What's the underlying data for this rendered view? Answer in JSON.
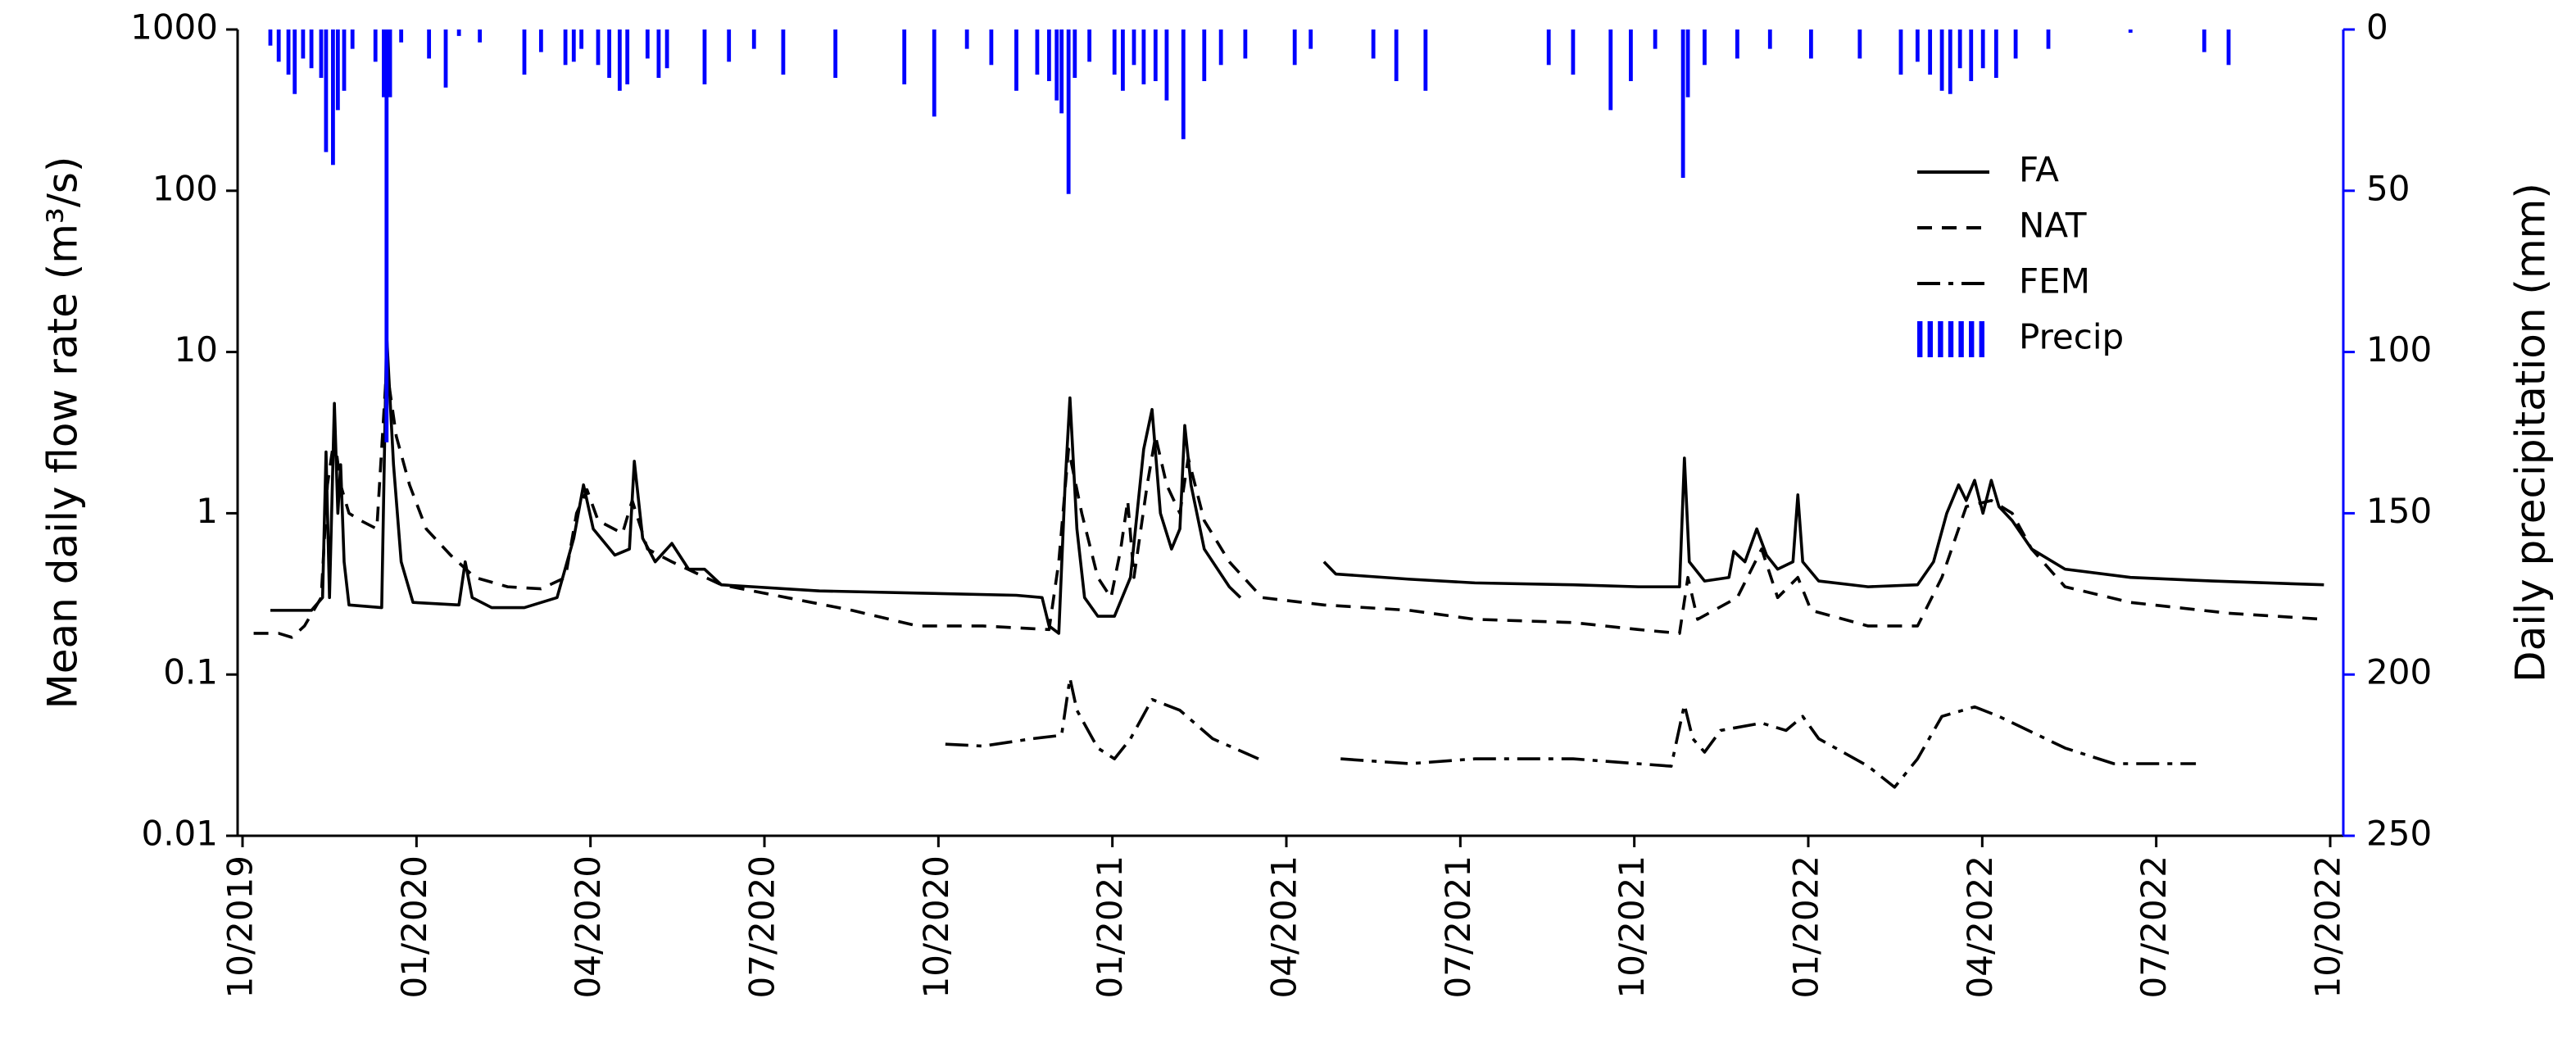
{
  "chart_data": {
    "type": "line",
    "y_label": "Mean daily flow rate (m³/s)",
    "y2_label": "Daily precipitation (mm)",
    "xlim": [
      2019.75,
      2022.75
    ],
    "xticks": [
      {
        "value": 2019.75,
        "label": "10/2019"
      },
      {
        "value": 2020.0,
        "label": "01/2020"
      },
      {
        "value": 2020.25,
        "label": "04/2020"
      },
      {
        "value": 2020.5,
        "label": "07/2020"
      },
      {
        "value": 2020.75,
        "label": "10/2020"
      },
      {
        "value": 2021.0,
        "label": "01/2021"
      },
      {
        "value": 2021.25,
        "label": "04/2021"
      },
      {
        "value": 2021.5,
        "label": "07/2021"
      },
      {
        "value": 2021.75,
        "label": "10/2021"
      },
      {
        "value": 2022.0,
        "label": "01/2022"
      },
      {
        "value": 2022.25,
        "label": "04/2022"
      },
      {
        "value": 2022.5,
        "label": "07/2022"
      },
      {
        "value": 2022.75,
        "label": "10/2022"
      }
    ],
    "ylim": [
      0.01,
      1000
    ],
    "ylog": true,
    "yticks": [
      0.01,
      0.1,
      1,
      10,
      100,
      1000
    ],
    "y2lim": [
      250,
      0
    ],
    "y2ticks": [
      0,
      50,
      100,
      150,
      200,
      250
    ],
    "y2color": "#0000ff",
    "legend": "upper right",
    "series": [
      {
        "name": "FA",
        "color": "#000000",
        "linestyle": "solid",
        "x": [
          2019.79,
          2019.849,
          2019.865,
          2019.87,
          2019.875,
          2019.882,
          2019.887,
          2019.891,
          2019.896,
          2019.903,
          2019.95,
          2019.957,
          2019.967,
          2019.978,
          2019.995,
          2020.061,
          2020.07,
          2020.08,
          2020.108,
          2020.155,
          2020.202,
          2020.226,
          2020.24,
          2020.254,
          2020.285,
          2020.306,
          2020.313,
          2020.325,
          2020.343,
          2020.367,
          2020.391,
          2020.414,
          2020.438,
          2020.579,
          2020.72,
          2020.862,
          2020.899,
          2020.909,
          2020.923,
          2020.932,
          2020.939,
          2020.949,
          2020.96,
          2020.979,
          2021.003,
          2021.026,
          2021.045,
          2021.057,
          2021.069,
          2021.085,
          2021.097,
          2021.104,
          2021.113,
          2021.132,
          2021.168,
          2021.184,
          2021.25,
          2021.304,
          2021.321,
          2021.427,
          2021.521,
          2021.662,
          2021.756,
          2021.815,
          2021.822,
          2021.829,
          2021.851,
          2021.886,
          2021.893,
          2021.909,
          2021.926,
          2021.94,
          2021.956,
          2021.978,
          2021.985,
          2021.992,
          2022.015,
          2022.086,
          2022.157,
          2022.18,
          2022.199,
          2022.216,
          2022.227,
          2022.239,
          2022.251,
          2022.263,
          2022.274,
          2022.293,
          2022.321,
          2022.369,
          2022.463,
          2022.581,
          2022.741
        ],
        "values": [
          0.25,
          0.25,
          0.3,
          2.4,
          0.3,
          4.8,
          1,
          2,
          0.5,
          0.27,
          0.26,
          13,
          2,
          0.5,
          0.28,
          0.27,
          0.5,
          0.3,
          0.26,
          0.26,
          0.3,
          0.7,
          1.5,
          0.8,
          0.55,
          0.6,
          2.1,
          0.7,
          0.5,
          0.65,
          0.45,
          0.45,
          0.36,
          0.33,
          0.32,
          0.31,
          0.3,
          0.2,
          0.18,
          1.5,
          5.2,
          0.8,
          0.3,
          0.23,
          0.23,
          0.4,
          2.5,
          4.4,
          1,
          0.6,
          0.8,
          3.5,
          1.5,
          0.6,
          0.35,
          0.3,
          null,
          0.5,
          0.42,
          0.39,
          0.37,
          0.36,
          0.35,
          0.35,
          2.2,
          0.5,
          0.38,
          0.4,
          0.58,
          0.5,
          0.8,
          0.55,
          0.45,
          0.5,
          1.3,
          0.5,
          0.38,
          0.35,
          0.36,
          0.5,
          1.0,
          1.5,
          1.2,
          1.6,
          1.0,
          1.6,
          1.1,
          0.9,
          0.6,
          0.45,
          0.4,
          0.38,
          0.36
        ]
      },
      {
        "name": "NAT",
        "color": "#000000",
        "linestyle": "dashed",
        "x": [
          2019.766,
          2019.802,
          2019.821,
          2019.839,
          2019.863,
          2019.872,
          2019.882,
          2019.891,
          2019.903,
          2019.92,
          2019.943,
          2019.957,
          2019.971,
          2019.99,
          2020.014,
          2020.049,
          2020.084,
          2020.131,
          2020.179,
          2020.214,
          2020.23,
          2020.245,
          2020.261,
          2020.296,
          2020.31,
          2020.332,
          2020.367,
          2020.438,
          2020.532,
          2020.626,
          2020.72,
          2020.814,
          2020.909,
          2020.923,
          2020.937,
          2020.956,
          2020.979,
          2020.998,
          2021.012,
          2021.022,
          2021.031,
          2021.05,
          2021.062,
          2021.078,
          2021.097,
          2021.109,
          2021.132,
          2021.168,
          2021.215,
          2021.304,
          2021.427,
          2021.521,
          2021.662,
          2021.756,
          2021.815,
          2021.827,
          2021.841,
          2021.898,
          2021.933,
          2021.956,
          2021.985,
          2022.004,
          2022.086,
          2022.157,
          2022.192,
          2022.227,
          2022.263,
          2022.293,
          2022.321,
          2022.369,
          2022.463,
          2022.604,
          2022.741
        ],
        "values": [
          0.18,
          0.18,
          0.17,
          0.2,
          0.3,
          1.5,
          3,
          1.5,
          1,
          0.9,
          0.8,
          8,
          3,
          1.5,
          0.8,
          0.55,
          0.4,
          0.35,
          0.34,
          0.4,
          1.0,
          1.4,
          0.9,
          0.75,
          1.2,
          0.6,
          0.5,
          0.36,
          0.3,
          0.25,
          0.2,
          0.2,
          0.19,
          0.5,
          2.5,
          1,
          0.4,
          0.3,
          0.6,
          1.2,
          0.4,
          1.5,
          3,
          1.5,
          1,
          2.2,
          0.9,
          0.5,
          0.3,
          0.27,
          0.25,
          0.22,
          0.21,
          0.19,
          0.18,
          0.4,
          0.22,
          0.3,
          0.6,
          0.3,
          0.4,
          0.25,
          0.2,
          0.2,
          0.4,
          1.1,
          1.2,
          1.0,
          0.6,
          0.35,
          0.28,
          0.24,
          0.22
        ]
      },
      {
        "name": "FEM",
        "color": "#000000",
        "linestyle": "dashdot",
        "x": [
          2020.76,
          2020.814,
          2020.885,
          2020.927,
          2020.939,
          2020.949,
          2020.979,
          2021.003,
          2021.026,
          2021.057,
          2021.097,
          2021.144,
          2021.21,
          2021.25,
          2021.328,
          2021.427,
          2021.521,
          2021.662,
          2021.803,
          2021.822,
          2021.834,
          2021.851,
          2021.874,
          2021.933,
          2021.968,
          2021.992,
          2022.015,
          2022.086,
          2022.124,
          2022.157,
          2022.192,
          2022.239,
          2022.274,
          2022.369,
          2022.439,
          2022.557
        ],
        "values": [
          0.037,
          0.036,
          0.04,
          0.042,
          0.095,
          0.06,
          0.035,
          0.03,
          0.04,
          0.07,
          0.06,
          0.04,
          0.03,
          null,
          0.03,
          0.028,
          0.03,
          0.03,
          0.027,
          0.065,
          0.04,
          0.033,
          0.045,
          0.05,
          0.045,
          0.055,
          0.04,
          0.027,
          0.02,
          0.03,
          0.055,
          0.063,
          0.055,
          0.035,
          0.028,
          0.028
        ]
      },
      {
        "name": "Precip",
        "color": "#0000ff",
        "type": "bar",
        "axis": "y2",
        "x": [
          2019.79,
          2019.802,
          2019.816,
          2019.825,
          2019.837,
          2019.849,
          2019.863,
          2019.87,
          2019.88,
          2019.887,
          2019.896,
          2019.908,
          2019.941,
          2019.953,
          2019.957,
          2019.962,
          2019.978,
          2020.018,
          2020.042,
          2020.061,
          2020.091,
          2020.155,
          2020.179,
          2020.214,
          2020.226,
          2020.237,
          2020.261,
          2020.277,
          2020.292,
          2020.303,
          2020.332,
          2020.348,
          2020.36,
          2020.414,
          2020.449,
          2020.485,
          2020.527,
          2020.602,
          2020.701,
          2020.744,
          2020.791,
          2020.826,
          2020.862,
          2020.892,
          2020.909,
          2020.92,
          2020.927,
          2020.937,
          2020.946,
          2020.967,
          2021.003,
          2021.015,
          2021.031,
          2021.045,
          2021.062,
          2021.078,
          2021.102,
          2021.132,
          2021.156,
          2021.191,
          2021.262,
          2021.285,
          2021.375,
          2021.408,
          2021.45,
          2021.627,
          2021.662,
          2021.716,
          2021.745,
          2021.78,
          2021.82,
          2021.827,
          2021.851,
          2021.898,
          2021.945,
          2022.004,
          2022.074,
          2022.133,
          2022.157,
          2022.175,
          2022.192,
          2022.204,
          2022.218,
          2022.234,
          2022.251,
          2022.27,
          2022.298,
          2022.345,
          2022.463,
          2022.569,
          2022.604
        ],
        "values": [
          5,
          10,
          14,
          20,
          9,
          12,
          15,
          38,
          42,
          25,
          19,
          6,
          10,
          21,
          128,
          21,
          4,
          9,
          18,
          2,
          4,
          14,
          7,
          11,
          10,
          6,
          11,
          15,
          19,
          17,
          9,
          15,
          12,
          17,
          10,
          6,
          14,
          15,
          17,
          27,
          6,
          11,
          19,
          14,
          16,
          22,
          26,
          51,
          15,
          10,
          14,
          19,
          11,
          17,
          16,
          22,
          34,
          16,
          11,
          9,
          11,
          6,
          9,
          16,
          19,
          11,
          14,
          25,
          16,
          6,
          46,
          21,
          11,
          9,
          6,
          9,
          9,
          14,
          10,
          14,
          19,
          20,
          12,
          16,
          12,
          15,
          9,
          6,
          1,
          7,
          11
        ]
      }
    ]
  }
}
